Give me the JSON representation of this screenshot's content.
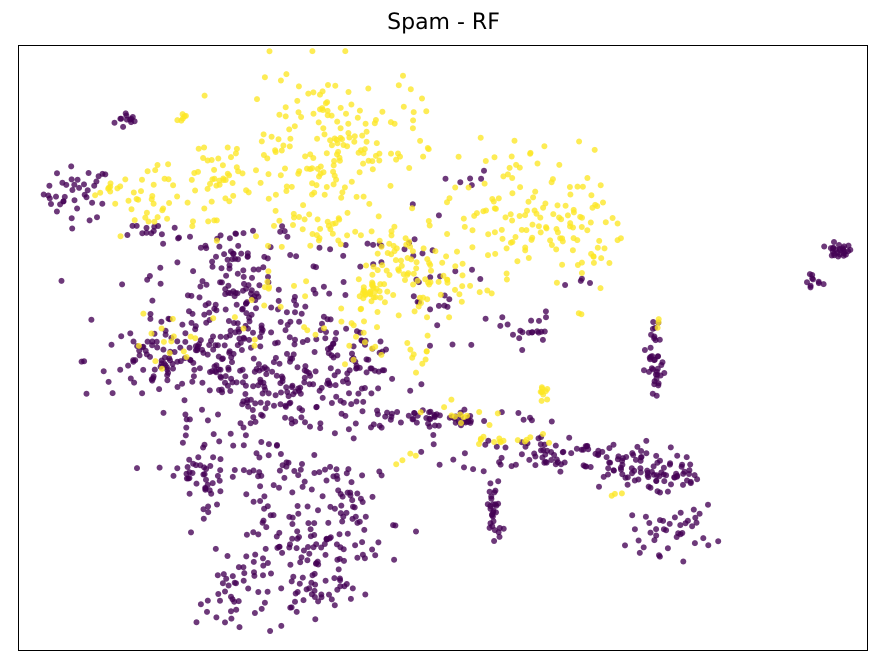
{
  "chart_data": {
    "type": "scatter",
    "title": "Spam - RF",
    "xlabel": "",
    "ylabel": "",
    "grid": false,
    "ticks": "none",
    "xlim": [
      0,
      1
    ],
    "ylim": [
      0,
      1
    ],
    "series": [
      {
        "color": "#440154",
        "clusters": [
          {
            "cx": 0.13,
            "cy": 0.876,
            "sx": 0.008,
            "sy": 0.008,
            "n": 12
          },
          {
            "cx": 0.07,
            "cy": 0.755,
            "sx": 0.02,
            "sy": 0.022,
            "n": 38
          },
          {
            "cx": 0.965,
            "cy": 0.66,
            "sx": 0.008,
            "sy": 0.006,
            "n": 26
          },
          {
            "cx": 0.935,
            "cy": 0.61,
            "sx": 0.006,
            "sy": 0.008,
            "n": 10
          },
          {
            "cx": 0.26,
            "cy": 0.53,
            "sx": 0.06,
            "sy": 0.07,
            "n": 230
          },
          {
            "cx": 0.18,
            "cy": 0.48,
            "sx": 0.05,
            "sy": 0.03,
            "n": 80
          },
          {
            "cx": 0.33,
            "cy": 0.42,
            "sx": 0.06,
            "sy": 0.03,
            "n": 110
          },
          {
            "cx": 0.39,
            "cy": 0.48,
            "sx": 0.03,
            "sy": 0.03,
            "n": 50
          },
          {
            "cx": 0.25,
            "cy": 0.64,
            "sx": 0.03,
            "sy": 0.03,
            "n": 40
          },
          {
            "cx": 0.16,
            "cy": 0.69,
            "sx": 0.015,
            "sy": 0.01,
            "n": 14
          },
          {
            "cx": 0.5,
            "cy": 0.385,
            "sx": 0.06,
            "sy": 0.01,
            "n": 60
          },
          {
            "cx": 0.62,
            "cy": 0.325,
            "sx": 0.05,
            "sy": 0.015,
            "n": 70
          },
          {
            "cx": 0.72,
            "cy": 0.3,
            "sx": 0.03,
            "sy": 0.02,
            "n": 60
          },
          {
            "cx": 0.77,
            "cy": 0.29,
            "sx": 0.015,
            "sy": 0.01,
            "n": 25
          },
          {
            "cx": 0.6,
            "cy": 0.53,
            "sx": 0.015,
            "sy": 0.015,
            "n": 20
          },
          {
            "cx": 0.75,
            "cy": 0.46,
            "sx": 0.006,
            "sy": 0.025,
            "n": 30
          },
          {
            "cx": 0.75,
            "cy": 0.52,
            "sx": 0.004,
            "sy": 0.012,
            "n": 8
          },
          {
            "cx": 0.56,
            "cy": 0.23,
            "sx": 0.005,
            "sy": 0.03,
            "n": 30
          },
          {
            "cx": 0.77,
            "cy": 0.2,
            "sx": 0.025,
            "sy": 0.02,
            "n": 40
          },
          {
            "cx": 0.215,
            "cy": 0.29,
            "sx": 0.025,
            "sy": 0.03,
            "n": 50
          },
          {
            "cx": 0.3,
            "cy": 0.3,
            "sx": 0.02,
            "sy": 0.025,
            "n": 30
          },
          {
            "cx": 0.39,
            "cy": 0.24,
            "sx": 0.03,
            "sy": 0.04,
            "n": 60
          },
          {
            "cx": 0.3,
            "cy": 0.2,
            "sx": 0.025,
            "sy": 0.025,
            "n": 30
          },
          {
            "cx": 0.36,
            "cy": 0.16,
            "sx": 0.03,
            "sy": 0.03,
            "n": 50
          },
          {
            "cx": 0.26,
            "cy": 0.09,
            "sx": 0.025,
            "sy": 0.035,
            "n": 45
          },
          {
            "cx": 0.35,
            "cy": 0.1,
            "sx": 0.025,
            "sy": 0.02,
            "n": 30
          },
          {
            "cx": 0.5,
            "cy": 0.58,
            "sx": 0.03,
            "sy": 0.03,
            "n": 20
          },
          {
            "cx": 0.54,
            "cy": 0.78,
            "sx": 0.015,
            "sy": 0.01,
            "n": 6
          },
          {
            "cx": 0.67,
            "cy": 0.61,
            "sx": 0.01,
            "sy": 0.01,
            "n": 4
          },
          {
            "cx": 0.43,
            "cy": 0.65,
            "sx": 0.04,
            "sy": 0.03,
            "n": 20
          }
        ]
      },
      {
        "color": "#fde725",
        "clusters": [
          {
            "cx": 0.37,
            "cy": 0.84,
            "sx": 0.05,
            "sy": 0.06,
            "n": 160
          },
          {
            "cx": 0.23,
            "cy": 0.77,
            "sx": 0.03,
            "sy": 0.04,
            "n": 50
          },
          {
            "cx": 0.15,
            "cy": 0.74,
            "sx": 0.02,
            "sy": 0.03,
            "n": 30
          },
          {
            "cx": 0.11,
            "cy": 0.76,
            "sx": 0.01,
            "sy": 0.008,
            "n": 10
          },
          {
            "cx": 0.19,
            "cy": 0.88,
            "sx": 0.004,
            "sy": 0.005,
            "n": 6
          },
          {
            "cx": 0.58,
            "cy": 0.72,
            "sx": 0.04,
            "sy": 0.06,
            "n": 100
          },
          {
            "cx": 0.67,
            "cy": 0.7,
            "sx": 0.02,
            "sy": 0.06,
            "n": 50
          },
          {
            "cx": 0.44,
            "cy": 0.65,
            "sx": 0.03,
            "sy": 0.04,
            "n": 50
          },
          {
            "cx": 0.42,
            "cy": 0.59,
            "sx": 0.01,
            "sy": 0.012,
            "n": 30
          },
          {
            "cx": 0.35,
            "cy": 0.7,
            "sx": 0.03,
            "sy": 0.02,
            "n": 30
          },
          {
            "cx": 0.5,
            "cy": 0.6,
            "sx": 0.03,
            "sy": 0.03,
            "n": 30
          },
          {
            "cx": 0.62,
            "cy": 0.43,
            "sx": 0.004,
            "sy": 0.008,
            "n": 10
          },
          {
            "cx": 0.57,
            "cy": 0.35,
            "sx": 0.02,
            "sy": 0.008,
            "n": 15
          },
          {
            "cx": 0.52,
            "cy": 0.39,
            "sx": 0.02,
            "sy": 0.01,
            "n": 12
          },
          {
            "cx": 0.2,
            "cy": 0.52,
            "sx": 0.05,
            "sy": 0.02,
            "n": 20
          },
          {
            "cx": 0.38,
            "cy": 0.52,
            "sx": 0.03,
            "sy": 0.03,
            "n": 20
          },
          {
            "cx": 0.47,
            "cy": 0.49,
            "sx": 0.02,
            "sy": 0.02,
            "n": 10
          },
          {
            "cx": 0.3,
            "cy": 0.6,
            "sx": 0.03,
            "sy": 0.02,
            "n": 10
          },
          {
            "cx": 0.7,
            "cy": 0.26,
            "sx": 0.005,
            "sy": 0.005,
            "n": 3
          },
          {
            "cx": 0.46,
            "cy": 0.32,
            "sx": 0.01,
            "sy": 0.005,
            "n": 4
          },
          {
            "cx": 0.75,
            "cy": 0.54,
            "sx": 0.003,
            "sy": 0.005,
            "n": 3
          }
        ]
      }
    ]
  }
}
